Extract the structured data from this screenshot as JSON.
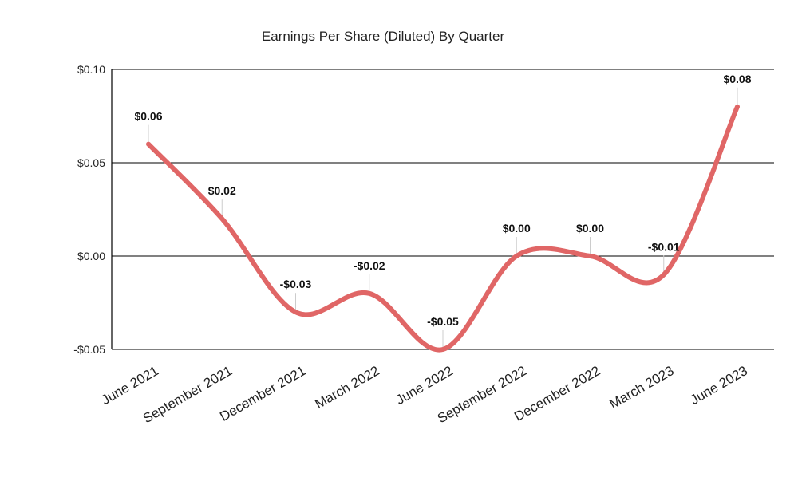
{
  "chart_data": {
    "type": "line",
    "title": "Earnings Per Share (Diluted) By Quarter",
    "xlabel": "",
    "ylabel": "",
    "categories": [
      "June 2021",
      "September 2021",
      "December 2021",
      "March 2022",
      "June 2022",
      "September 2022",
      "December 2022",
      "March 2023",
      "June 2023"
    ],
    "series": [
      {
        "values": [
          0.06,
          0.02,
          -0.03,
          -0.02,
          -0.05,
          0.0,
          0.0,
          -0.01,
          0.08
        ],
        "labels": [
          "$0.06",
          "$0.02",
          "-$0.03",
          "-$0.02",
          "-$0.05",
          "$0.00",
          "$0.00",
          "-$0.01",
          "$0.08"
        ],
        "color": "#e06666"
      }
    ],
    "yticks": [
      {
        "value": 0.1,
        "label": "$0.10"
      },
      {
        "value": 0.05,
        "label": "$0.05"
      },
      {
        "value": 0.0,
        "label": "$0.00"
      },
      {
        "value": -0.05,
        "label": "-$0.05"
      }
    ],
    "ylim": [
      -0.05,
      0.1
    ],
    "grid": true,
    "smooth": true,
    "legend": "none"
  }
}
